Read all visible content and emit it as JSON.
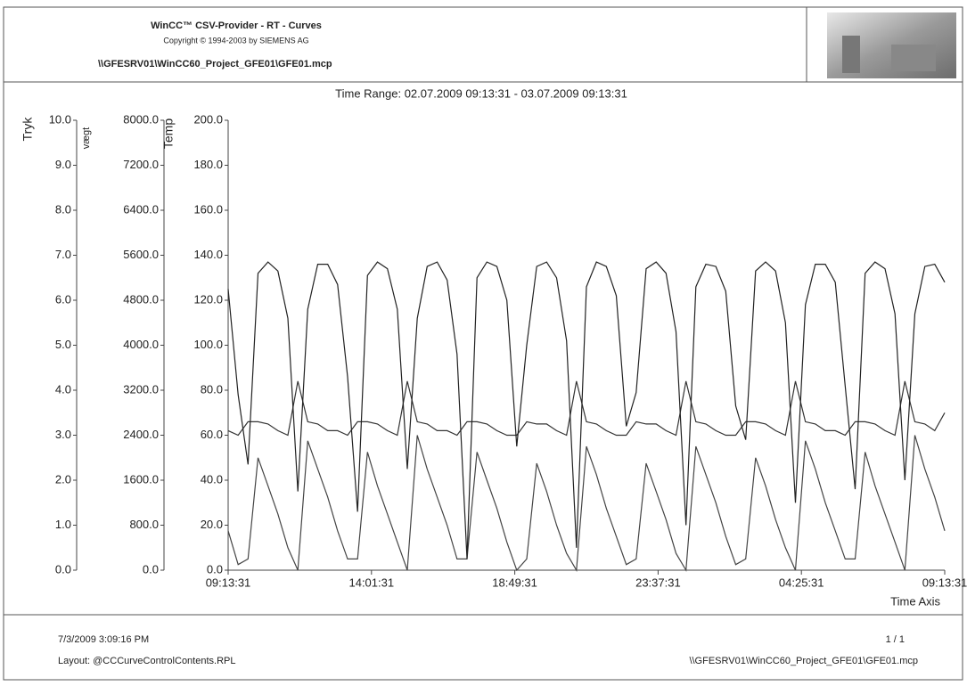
{
  "header": {
    "title": "WinCC™ CSV-Provider - RT  - Curves",
    "copyright": "Copyright © 1994-2003 by SIEMENS AG",
    "path": "\\\\GFESRV01\\WinCC60_Project_GFE01\\GFE01.mcp"
  },
  "chart_data": {
    "type": "line",
    "title": "Time Range: 02.07.2009 09:13:31 - 03.07.2009 09:13:31",
    "x_label": "Time Axis",
    "x": [
      "09:13:31",
      "09:33:31",
      "09:53:31",
      "10:13:31",
      "10:33:31",
      "10:53:31",
      "11:13:31",
      "11:33:31",
      "11:53:31",
      "12:13:31",
      "12:33:31",
      "12:53:31",
      "13:13:31",
      "13:33:31",
      "13:53:31",
      "14:13:31",
      "14:33:31",
      "14:53:31",
      "15:13:31",
      "15:33:31",
      "15:53:31",
      "16:13:31",
      "16:33:31",
      "16:53:31",
      "17:13:31",
      "17:33:31",
      "17:53:31",
      "18:13:31",
      "18:33:31",
      "18:53:31",
      "19:13:31",
      "19:33:31",
      "19:53:31",
      "20:13:31",
      "20:33:31",
      "20:53:31",
      "21:13:31",
      "21:33:31",
      "21:53:31",
      "22:13:31",
      "22:33:31",
      "22:53:31",
      "23:13:31",
      "23:33:31",
      "23:53:31",
      "00:13:31",
      "00:33:31",
      "00:53:31",
      "01:13:31",
      "01:33:31",
      "01:53:31",
      "02:13:31",
      "02:33:31",
      "02:53:31",
      "03:13:31",
      "03:33:31",
      "03:53:31",
      "04:13:31",
      "04:33:31",
      "04:53:31",
      "05:13:31",
      "05:33:31",
      "05:53:31",
      "06:13:31",
      "06:33:31",
      "06:53:31",
      "07:13:31",
      "07:33:31",
      "07:53:31",
      "08:13:31",
      "08:33:31",
      "08:53:31",
      "09:13:31"
    ],
    "xticks": [
      "09:13:31",
      "14:01:31",
      "18:49:31",
      "23:37:31",
      "04:25:31",
      "09:13:31"
    ],
    "axes": [
      {
        "label": "Tryk",
        "ylim": [
          0,
          10
        ],
        "color": "#333333",
        "yticks": [
          {
            "value": 0,
            "label": "0.0"
          },
          {
            "value": 1,
            "label": "1.0"
          },
          {
            "value": 2,
            "label": "2.0"
          },
          {
            "value": 3,
            "label": "3.0"
          },
          {
            "value": 4,
            "label": "4.0"
          },
          {
            "value": 5,
            "label": "5.0"
          },
          {
            "value": 6,
            "label": "6.0"
          },
          {
            "value": 7,
            "label": "7.0"
          },
          {
            "value": 8,
            "label": "8.0"
          },
          {
            "value": 9,
            "label": "9.0"
          },
          {
            "value": 10,
            "label": "10.0"
          }
        ],
        "values": [
          3.1,
          3.0,
          3.3,
          3.3,
          3.25,
          3.1,
          3.0,
          4.2,
          3.3,
          3.25,
          3.1,
          3.1,
          3.0,
          3.3,
          3.3,
          3.25,
          3.1,
          3.0,
          4.2,
          3.3,
          3.25,
          3.1,
          3.1,
          3.0,
          3.3,
          3.3,
          3.25,
          3.1,
          3.0,
          3.0,
          3.3,
          3.25,
          3.25,
          3.1,
          3.0,
          4.2,
          3.3,
          3.25,
          3.1,
          3.0,
          3.0,
          3.3,
          3.25,
          3.25,
          3.1,
          3.0,
          4.2,
          3.3,
          3.25,
          3.1,
          3.0,
          3.0,
          3.3,
          3.3,
          3.25,
          3.1,
          3.0,
          4.2,
          3.3,
          3.25,
          3.1,
          3.1,
          3.0,
          3.3,
          3.3,
          3.25,
          3.1,
          3.0,
          4.2,
          3.3,
          3.25,
          3.1,
          3.5
        ]
      },
      {
        "label": "vægt",
        "ylim": [
          0,
          8000
        ],
        "color": "#444444",
        "yticks": [
          {
            "value": 0,
            "label": "0.0"
          },
          {
            "value": 800,
            "label": "800.0"
          },
          {
            "value": 1600,
            "label": "1600.0"
          },
          {
            "value": 2400,
            "label": "2400.0"
          },
          {
            "value": 3200,
            "label": "3200.0"
          },
          {
            "value": 4000,
            "label": "4000.0"
          },
          {
            "value": 4800,
            "label": "4800.0"
          },
          {
            "value": 5600,
            "label": "5600.0"
          },
          {
            "value": 6400,
            "label": "6400.0"
          },
          {
            "value": 7200,
            "label": "7200.0"
          },
          {
            "value": 8000,
            "label": "8000.0"
          }
        ],
        "values": [
          700,
          100,
          200,
          2000,
          1500,
          1000,
          400,
          0,
          2300,
          1800,
          1300,
          700,
          200,
          200,
          2100,
          1500,
          1000,
          500,
          0,
          2400,
          1800,
          1300,
          800,
          200,
          200,
          2100,
          1600,
          1100,
          500,
          0,
          200,
          1900,
          1400,
          800,
          300,
          0,
          2200,
          1700,
          1100,
          600,
          100,
          200,
          1900,
          1400,
          900,
          300,
          0,
          2200,
          1700,
          1200,
          600,
          100,
          200,
          2000,
          1500,
          900,
          400,
          0,
          2300,
          1800,
          1200,
          700,
          200,
          200,
          2100,
          1500,
          1000,
          500,
          0,
          2400,
          1800,
          1300,
          700
        ]
      },
      {
        "label": "Temp",
        "ylim": [
          0,
          200
        ],
        "color": "#222222",
        "yticks": [
          {
            "value": 0,
            "label": "0.0"
          },
          {
            "value": 20,
            "label": "20.0"
          },
          {
            "value": 40,
            "label": "40.0"
          },
          {
            "value": 60,
            "label": "60.0"
          },
          {
            "value": 80,
            "label": "80.0"
          },
          {
            "value": 100,
            "label": "100.0"
          },
          {
            "value": 120,
            "label": "120.0"
          },
          {
            "value": 140,
            "label": "140.0"
          },
          {
            "value": 160,
            "label": "160.0"
          },
          {
            "value": 180,
            "label": "180.0"
          },
          {
            "value": 200,
            "label": "200.0"
          }
        ],
        "values": [
          125,
          78,
          47,
          132,
          137,
          133,
          112,
          35,
          116,
          136,
          136,
          127,
          86,
          26,
          131,
          137,
          134,
          116,
          45,
          112,
          135,
          137,
          129,
          96,
          5,
          130,
          137,
          135,
          120,
          55,
          100,
          135,
          137,
          130,
          102,
          10,
          126,
          137,
          135,
          122,
          64,
          79,
          134,
          137,
          132,
          106,
          20,
          126,
          136,
          135,
          124,
          73,
          58,
          133,
          137,
          133,
          110,
          30,
          118,
          136,
          136,
          128,
          82,
          36,
          132,
          137,
          134,
          114,
          40,
          114,
          135,
          136,
          128
        ]
      }
    ]
  },
  "footer": {
    "timestamp": "7/3/2009 3:09:16 PM",
    "page": "1 / 1",
    "layout": "Layout: @CCCurveControlContents.RPL",
    "path": "\\\\GFESRV01\\WinCC60_Project_GFE01\\GFE01.mcp"
  }
}
